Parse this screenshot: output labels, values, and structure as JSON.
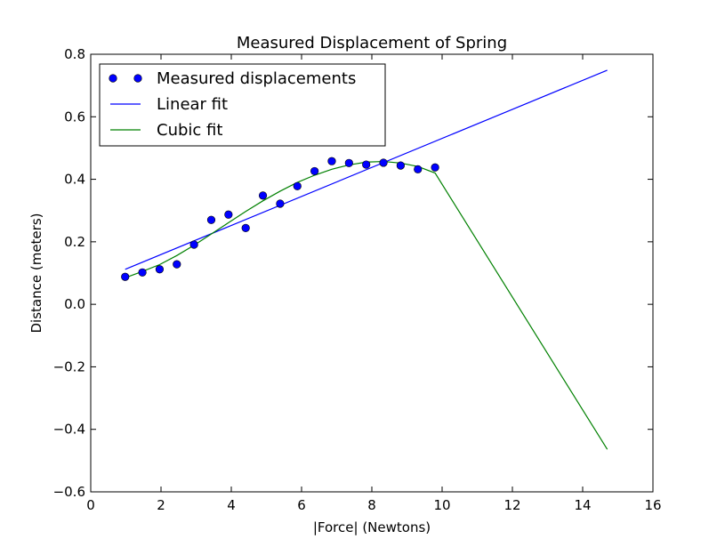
{
  "chart_data": {
    "type": "line",
    "title": "Measured Displacement of Spring",
    "xlabel": "|Force| (Newtons)",
    "ylabel": "Distance (meters)",
    "xlim": [
      0,
      16
    ],
    "ylim": [
      -0.6,
      0.8
    ],
    "xticks": [
      0,
      2,
      4,
      6,
      8,
      10,
      12,
      14,
      16
    ],
    "yticks": [
      -0.6,
      -0.4,
      -0.2,
      0.0,
      0.2,
      0.4,
      0.6,
      0.8
    ],
    "xtick_labels": [
      "0",
      "2",
      "4",
      "6",
      "8",
      "10",
      "12",
      "14",
      "16"
    ],
    "ytick_labels": [
      "−0.6",
      "−0.4",
      "−0.2",
      "0.0",
      "0.2",
      "0.4",
      "0.6",
      "0.8"
    ],
    "grid": false,
    "legend_position": "top-left",
    "series": [
      {
        "name": "Measured displacements",
        "kind": "scatter",
        "color": "#0000ff",
        "x": [
          0.98,
          1.47,
          1.96,
          2.45,
          2.94,
          3.43,
          3.92,
          4.41,
          4.9,
          5.39,
          5.88,
          6.37,
          6.86,
          7.35,
          7.84,
          8.33,
          8.82,
          9.31,
          9.8
        ],
        "y": [
          0.088,
          0.102,
          0.112,
          0.128,
          0.191,
          0.27,
          0.287,
          0.244,
          0.348,
          0.322,
          0.378,
          0.426,
          0.458,
          0.452,
          0.447,
          0.453,
          0.444,
          0.432,
          0.438
        ]
      },
      {
        "name": "Linear fit",
        "kind": "line",
        "color": "#0000ff",
        "x": [
          0.98,
          14.7
        ],
        "y": [
          0.112,
          0.749
        ]
      },
      {
        "name": "Cubic fit",
        "kind": "line",
        "color": "#008000",
        "x": [
          0.98,
          1.47,
          1.96,
          2.45,
          2.94,
          3.43,
          3.92,
          4.41,
          4.9,
          5.39,
          5.88,
          6.37,
          6.86,
          7.35,
          7.84,
          8.33,
          8.82,
          9.31,
          9.8,
          14.7
        ],
        "y": [
          0.085,
          0.105,
          0.127,
          0.156,
          0.189,
          0.225,
          0.261,
          0.297,
          0.331,
          0.362,
          0.39,
          0.413,
          0.432,
          0.446,
          0.455,
          0.457,
          0.452,
          0.441,
          0.42,
          -0.464
        ]
      }
    ]
  }
}
